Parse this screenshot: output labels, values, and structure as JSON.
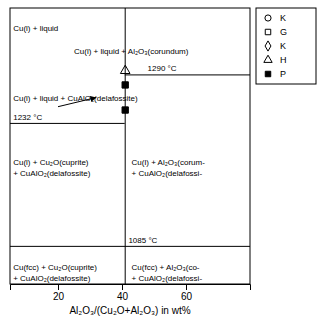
{
  "chart_data": {
    "type": "scatter",
    "x_label": "Al₂O₃/(Cu₂O+Al₂O₃) in wt%",
    "xlim": [
      5,
      80
    ],
    "ylim": [
      1040,
      1370
    ],
    "xticks": [
      20,
      40,
      60
    ],
    "tick_labels": "x",
    "series": [
      {
        "x": [
          41
        ],
        "values": [
          1295
        ],
        "marker": "triangle-open"
      },
      {
        "x": [
          41
        ],
        "values": [
          1278
        ],
        "marker": "square-filled"
      },
      {
        "x": [
          41
        ],
        "values": [
          1248
        ],
        "marker": "square-filled"
      }
    ],
    "hlines": [
      {
        "value": 1290,
        "x_range": [
          40.85,
          80
        ],
        "label": "1290 °C",
        "label_x": 48,
        "label_y": 1293
      },
      {
        "value": 1232,
        "x_range": [
          5,
          40.85
        ],
        "label": "1232 °C",
        "label_x": 6,
        "label_y": 1235
      },
      {
        "value": 1085,
        "x_range": [
          5,
          80
        ],
        "label": "1085 °C",
        "label_x": 42,
        "label_y": 1088
      }
    ],
    "vlines": [
      41
    ],
    "annotations": [
      {
        "text": "Cu(l) + liquid",
        "x": 6,
        "y": 1345
      },
      {
        "text": "Cu(l) + liquid + Al₂O₃(corundum)",
        "x": 25,
        "y": 1318
      },
      {
        "text": "Cu(l) + liquid + CuAlO₂(delafossite)",
        "x": 6,
        "y": 1262
      },
      {
        "text": "Cu(l) + Cu₂O(cuprite)",
        "x": 6,
        "y": 1185
      },
      {
        "text": "+ CuAlO₂(delafossite)",
        "x": 6,
        "y": 1172
      },
      {
        "text": "Cu(fcc) + Cu₂O(cuprite)",
        "x": 6,
        "y": 1060
      },
      {
        "text": "+ CuAlO₂(delafossite)",
        "x": 6,
        "y": 1047
      },
      {
        "text": "Cu(l) + Al₂O₃(corum-",
        "x": 43,
        "y": 1185
      },
      {
        "text": "+ CuAlO₂(delafossi-",
        "x": 43,
        "y": 1172
      },
      {
        "text": "Cu(fcc) + Al₂O₃(co-",
        "x": 43,
        "y": 1060
      },
      {
        "text": "+ CuAlO₂(delafossi-",
        "x": 43,
        "y": 1047
      }
    ],
    "arrow": {
      "x1": 20,
      "y1": 1252,
      "x2": 32,
      "y2": 1263
    },
    "legend": "upper right",
    "legend_entries": [
      {
        "label": "K",
        "marker": "circle-open"
      },
      {
        "label": "G",
        "marker": "square-open"
      },
      {
        "label": "K",
        "marker": "diamond-open"
      },
      {
        "label": "H",
        "marker": "triangle-open"
      },
      {
        "label": "P",
        "marker": "square-filled"
      }
    ]
  }
}
